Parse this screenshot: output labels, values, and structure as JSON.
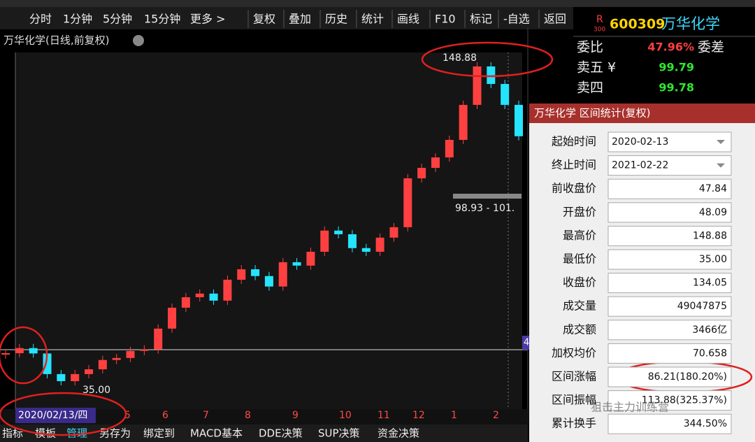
{
  "toolbar": {
    "items": [
      "分时",
      "1分钟",
      "5分钟",
      "15分钟",
      "更多 >",
      "复权",
      "叠加",
      "历史",
      "统计",
      "画线",
      "F10",
      "标记",
      "-自选",
      "返回"
    ]
  },
  "quote": {
    "badge": "R",
    "badge_sub": "300",
    "code": "600309",
    "name": "万华化学",
    "rows": [
      {
        "label": "委比",
        "value": "47.96%",
        "extra": "委差"
      },
      {
        "label": "卖五 ¥",
        "value": "99.79"
      },
      {
        "label": "卖四",
        "value": "99.78"
      }
    ]
  },
  "chart": {
    "title": "万华化学(日线,前复权)",
    "high_label": "148.88",
    "low_label": "35.00",
    "range_label": "98.93 - 101.",
    "edge_label": "4",
    "date_label": "2020/02/13/四",
    "months": [
      "5",
      "6",
      "7",
      "8",
      "9",
      "10",
      "11",
      "12",
      "1",
      "2"
    ],
    "prices": [
      46.1,
      47.9,
      46.0,
      38.7,
      36.2,
      38.7,
      40.4,
      43.7,
      44.4,
      46.9,
      47.4,
      54.8,
      62.2,
      65.9,
      67.2,
      64.7,
      72.1,
      75.8,
      73.4,
      69.7,
      78.3,
      77.1,
      82.0,
      89.5,
      88.2,
      83.3,
      82.0,
      87.0,
      90.7,
      108.0,
      111.7,
      115.4,
      121.6,
      134.0,
      147.6,
      141.4,
      134.0,
      122.9
    ]
  },
  "tabs": [
    "指标",
    "模板",
    "管理",
    "另存为",
    "绑定到",
    "MACD基本",
    "DDE决策",
    "SUP决策",
    "资金决策"
  ],
  "dialog": {
    "title": "万华化学 区间统计(复权)",
    "rows": [
      {
        "label": "起始时间",
        "value": "2020-02-13"
      },
      {
        "label": "终止时间",
        "value": "2021-02-22"
      },
      {
        "label": "前收盘价",
        "value": "47.84"
      },
      {
        "label": "开盘价",
        "value": "48.09"
      },
      {
        "label": "最高价",
        "value": "148.88"
      },
      {
        "label": "最低价",
        "value": "35.00"
      },
      {
        "label": "收盘价",
        "value": "134.05"
      },
      {
        "label": "成交量",
        "value": "49047875"
      },
      {
        "label": "成交额",
        "value": "3466亿"
      },
      {
        "label": "加权均价",
        "value": "70.658"
      },
      {
        "label": "区间涨幅",
        "value": "86.21(180.20%)"
      },
      {
        "label": "区间振幅",
        "value": "113.88(325.37%)"
      },
      {
        "label": "累计换手",
        "value": "344.50%"
      }
    ]
  },
  "watermark": "狙击主力训练营"
}
